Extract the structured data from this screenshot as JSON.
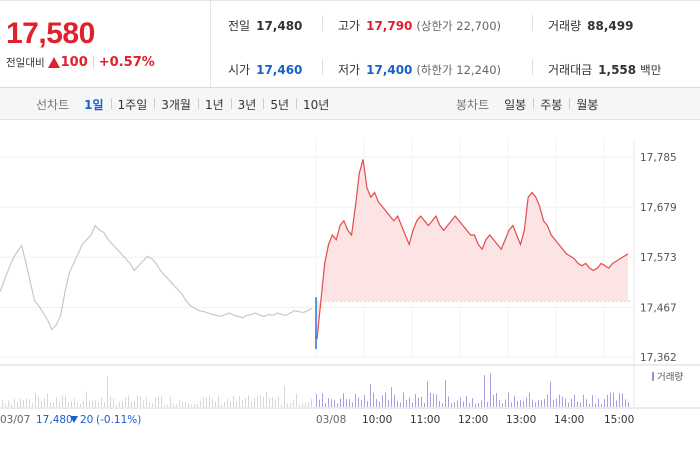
{
  "price": {
    "current": "17,580",
    "change_label": "전일대비",
    "change_value": "100",
    "change_percent": "+0.57%"
  },
  "stats": [
    {
      "label": "전일",
      "value": "17,480",
      "tone": "plain",
      "sub": ""
    },
    {
      "label": "고가",
      "value": "17,790",
      "tone": "red",
      "sub": "(상한가 22,700)"
    },
    {
      "label": "거래량",
      "value": "88,499",
      "tone": "plain",
      "sub": ""
    },
    {
      "label": "시가",
      "value": "17,460",
      "tone": "blue",
      "sub": ""
    },
    {
      "label": "저가",
      "value": "17,400",
      "tone": "blue",
      "sub": "(하한가 12,240)"
    },
    {
      "label": "거래대금",
      "value": "1,558",
      "tone": "plain",
      "sub": "백만"
    }
  ],
  "line_tabs": {
    "label": "선차트",
    "items": [
      "1일",
      "1주일",
      "3개월",
      "1년",
      "3년",
      "5년",
      "10년"
    ],
    "active": 0
  },
  "candle_tabs": {
    "label": "봉차트",
    "items": [
      "일봉",
      "주봉",
      "월봉"
    ]
  },
  "chart_data": {
    "type": "line",
    "y_ticks": [
      "17,785",
      "17,679",
      "17,573",
      "17,467",
      "17,362"
    ],
    "y_tick_values": [
      17785,
      17679,
      17573,
      17467,
      17362
    ],
    "ylim": [
      17362,
      17785
    ],
    "reference_price": 17480,
    "volume_legend": "거래량",
    "x_labels": [
      "03/08",
      "10:00",
      "11:00",
      "12:00",
      "13:00",
      "14:00",
      "15:00"
    ],
    "prev_day_info": {
      "date": "03/07",
      "price": "17,480",
      "change": "20",
      "percent": "(-0.11%)"
    },
    "prev_day_series": [
      17500,
      17525,
      17548,
      17570,
      17585,
      17598,
      17560,
      17520,
      17480,
      17470,
      17455,
      17440,
      17420,
      17430,
      17450,
      17500,
      17540,
      17560,
      17580,
      17600,
      17610,
      17620,
      17640,
      17630,
      17625,
      17610,
      17600,
      17590,
      17580,
      17570,
      17560,
      17545,
      17555,
      17565,
      17575,
      17570,
      17560,
      17545,
      17535,
      17525,
      17515,
      17505,
      17495,
      17480,
      17470,
      17465,
      17460,
      17458,
      17455,
      17452,
      17450,
      17448,
      17452,
      17455,
      17450,
      17448,
      17445,
      17450,
      17452,
      17455,
      17450,
      17448,
      17452,
      17450,
      17455,
      17452,
      17450,
      17455,
      17460,
      17458,
      17456,
      17460,
      17465
    ],
    "today_series": [
      17400,
      17480,
      17560,
      17600,
      17620,
      17610,
      17640,
      17650,
      17630,
      17620,
      17680,
      17750,
      17780,
      17720,
      17700,
      17710,
      17690,
      17680,
      17670,
      17660,
      17650,
      17660,
      17640,
      17620,
      17600,
      17630,
      17650,
      17660,
      17650,
      17640,
      17650,
      17660,
      17640,
      17630,
      17640,
      17650,
      17660,
      17650,
      17640,
      17630,
      17620,
      17620,
      17600,
      17590,
      17610,
      17620,
      17610,
      17600,
      17590,
      17610,
      17630,
      17640,
      17620,
      17600,
      17630,
      17700,
      17710,
      17700,
      17680,
      17650,
      17640,
      17620,
      17610,
      17600,
      17590,
      17580,
      17575,
      17570,
      17560,
      17555,
      17560,
      17550,
      17545,
      17550,
      17560,
      17555,
      17550,
      17560,
      17565,
      17570,
      17575,
      17580
    ]
  }
}
